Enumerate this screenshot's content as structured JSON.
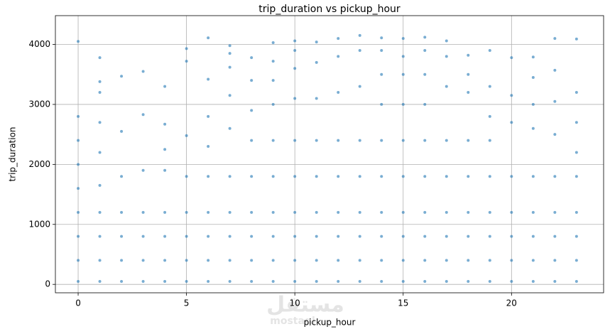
{
  "chart_data": {
    "type": "scatter",
    "title": "trip_duration vs pickup_hour",
    "x_label": "pickup_hour",
    "y_label": "trip_duration",
    "watermark": [
      "مستقل",
      "mostaql"
    ],
    "color": "#1f77b4",
    "grid": true,
    "xlim": [
      -1.05,
      24.25
    ],
    "xticks": [
      0,
      5,
      10,
      15,
      20
    ],
    "ylim": [
      -140,
      4480
    ],
    "yticks": [
      0,
      1000,
      2000,
      3000,
      4000
    ],
    "x": [
      0,
      0,
      0,
      0,
      0,
      0,
      0,
      0,
      0,
      1,
      1,
      1,
      1,
      1,
      1,
      1,
      1,
      1,
      1,
      2,
      2,
      2,
      2,
      2,
      2,
      2,
      3,
      3,
      3,
      3,
      3,
      3,
      3,
      4,
      4,
      4,
      4,
      4,
      4,
      4,
      4,
      5,
      5,
      5,
      5,
      5,
      5,
      5,
      5,
      6,
      6,
      6,
      6,
      6,
      6,
      6,
      6,
      6,
      7,
      7,
      7,
      7,
      7,
      7,
      7,
      7,
      7,
      7,
      8,
      8,
      8,
      8,
      8,
      8,
      8,
      8,
      8,
      9,
      9,
      9,
      9,
      9,
      9,
      9,
      9,
      9,
      9,
      10,
      10,
      10,
      10,
      10,
      10,
      10,
      10,
      10,
      10,
      11,
      11,
      11,
      11,
      11,
      11,
      11,
      11,
      11,
      12,
      12,
      12,
      12,
      12,
      12,
      12,
      12,
      12,
      13,
      13,
      13,
      13,
      13,
      13,
      13,
      13,
      13,
      14,
      14,
      14,
      14,
      14,
      14,
      14,
      14,
      14,
      14,
      15,
      15,
      15,
      15,
      15,
      15,
      15,
      15,
      15,
      15,
      16,
      16,
      16,
      16,
      16,
      16,
      16,
      16,
      16,
      16,
      17,
      17,
      17,
      17,
      17,
      17,
      17,
      17,
      17,
      18,
      18,
      18,
      18,
      18,
      18,
      18,
      18,
      18,
      19,
      19,
      19,
      19,
      19,
      19,
      19,
      19,
      19,
      20,
      20,
      20,
      20,
      20,
      20,
      20,
      20,
      21,
      21,
      21,
      21,
      21,
      21,
      21,
      21,
      21,
      22,
      22,
      22,
      22,
      22,
      22,
      22,
      22,
      22,
      23,
      23,
      23,
      23,
      23,
      23,
      23,
      23,
      23
    ],
    "values": [
      50,
      400,
      800,
      1200,
      1600,
      2000,
      2400,
      2800,
      4050,
      50,
      400,
      800,
      1200,
      1650,
      2200,
      2700,
      3200,
      3380,
      3780,
      50,
      400,
      800,
      1200,
      1800,
      2550,
      3470,
      50,
      400,
      800,
      1200,
      1900,
      2830,
      3550,
      50,
      400,
      800,
      1200,
      1900,
      2250,
      2670,
      3300,
      50,
      400,
      800,
      1200,
      1800,
      2480,
      3720,
      3930,
      50,
      400,
      800,
      1200,
      1800,
      2300,
      2800,
      3420,
      4110,
      50,
      400,
      800,
      1200,
      1800,
      2600,
      3150,
      3620,
      3850,
      3980,
      50,
      400,
      800,
      1200,
      1800,
      2400,
      2900,
      3400,
      3780,
      50,
      400,
      800,
      1200,
      1800,
      2400,
      3000,
      3400,
      3720,
      4030,
      50,
      400,
      800,
      1200,
      1800,
      2400,
      3100,
      3600,
      3900,
      4060,
      50,
      400,
      800,
      1200,
      1800,
      2400,
      3100,
      3700,
      4040,
      50,
      400,
      800,
      1200,
      1800,
      2400,
      3200,
      3800,
      4100,
      50,
      400,
      800,
      1200,
      1800,
      2400,
      3300,
      3900,
      4150,
      50,
      400,
      800,
      1200,
      1800,
      2400,
      3000,
      3500,
      3900,
      4110,
      50,
      400,
      800,
      1200,
      1800,
      2400,
      3000,
      3500,
      3800,
      4100,
      50,
      400,
      800,
      1200,
      1800,
      2400,
      3000,
      3500,
      3900,
      4120,
      50,
      400,
      800,
      1200,
      1800,
      2400,
      3300,
      3800,
      4060,
      50,
      400,
      800,
      1200,
      1800,
      2400,
      3200,
      3500,
      3820,
      50,
      400,
      800,
      1200,
      1800,
      2400,
      2800,
      3300,
      3900,
      50,
      400,
      800,
      1200,
      1800,
      2700,
      3150,
      3780,
      50,
      400,
      800,
      1200,
      1800,
      2600,
      3000,
      3450,
      3790,
      50,
      400,
      800,
      1200,
      1800,
      2500,
      3050,
      3570,
      4100,
      50,
      400,
      800,
      1200,
      1800,
      2200,
      2700,
      3200,
      4090
    ]
  }
}
